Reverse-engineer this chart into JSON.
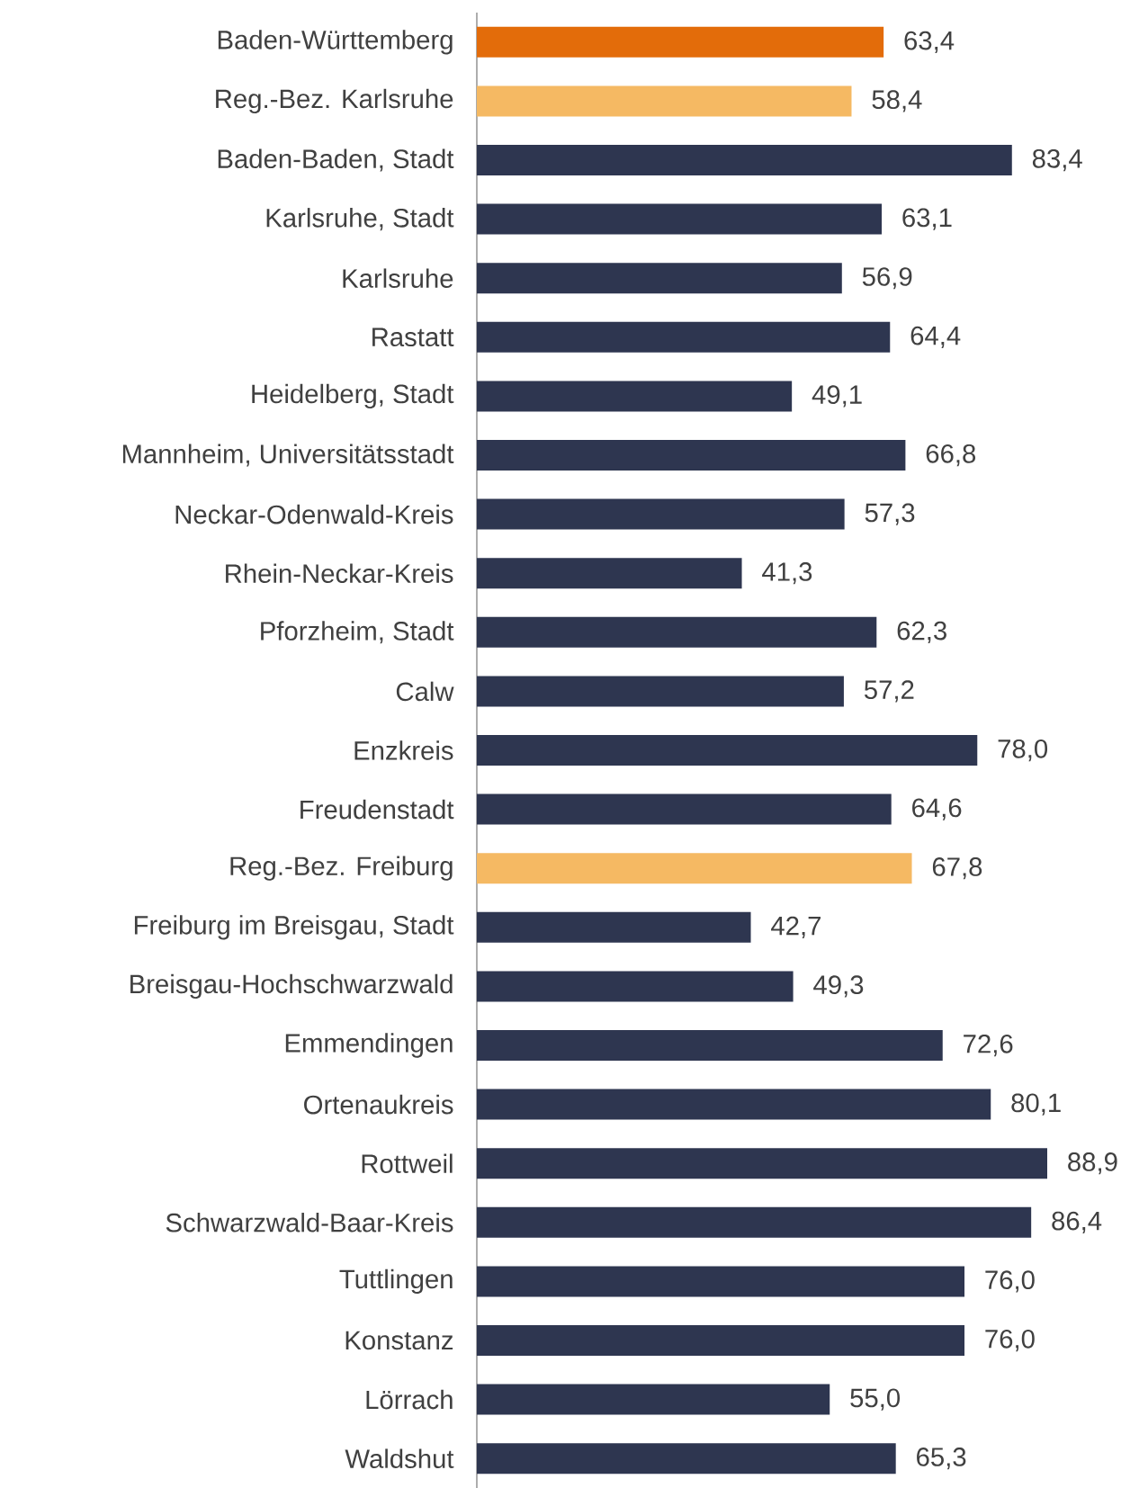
{
  "chart_data": {
    "type": "bar",
    "orientation": "horizontal",
    "categories": [
      "Baden-Württemberg",
      "Reg.-Bez. Karlsruhe",
      "Baden-Baden, Stadt",
      "Karlsruhe, Stadt",
      "Karlsruhe",
      "Rastatt",
      "Heidelberg, Stadt",
      "Mannheim, Universitätsstadt",
      "Neckar-Odenwald-Kreis",
      "Rhein-Neckar-Kreis",
      "Pforzheim, Stadt",
      "Calw",
      "Enzkreis",
      "Freudenstadt",
      "Reg.-Bez. Freiburg",
      "Freiburg im Breisgau, Stadt",
      "Breisgau-Hochschwarzwald",
      "Emmendingen",
      "Ortenaukreis",
      "Rottweil",
      "Schwarzwald-Baar-Kreis",
      "Tuttlingen",
      "Konstanz",
      "Lörrach",
      "Waldshut"
    ],
    "values": [
      63.4,
      58.4,
      83.4,
      63.1,
      56.9,
      64.4,
      49.1,
      66.8,
      57.3,
      41.3,
      62.3,
      57.2,
      78.0,
      64.6,
      67.8,
      42.7,
      49.3,
      72.6,
      80.1,
      88.9,
      86.4,
      76.0,
      76.0,
      55.0,
      65.3
    ],
    "value_labels": [
      "63,4",
      "58,4",
      "83,4",
      "63,1",
      "56,9",
      "64,4",
      "49,1",
      "66,8",
      "57,3",
      "41,3",
      "62,3",
      "57,2",
      "78,0",
      "64,6",
      "67,8",
      "42,7",
      "49,3",
      "72,6",
      "80,1",
      "88,9",
      "86,4",
      "76,0",
      "76,0",
      "55,0",
      "65,3"
    ],
    "colors": [
      "#e36c0a",
      "#f5b963",
      "#2e3650",
      "#2e3650",
      "#2e3650",
      "#2e3650",
      "#2e3650",
      "#2e3650",
      "#2e3650",
      "#2e3650",
      "#2e3650",
      "#2e3650",
      "#2e3650",
      "#2e3650",
      "#f5b963",
      "#2e3650",
      "#2e3650",
      "#2e3650",
      "#2e3650",
      "#2e3650",
      "#2e3650",
      "#2e3650",
      "#2e3650",
      "#2e3650",
      "#2e3650"
    ],
    "tick_labels": "y"
  }
}
